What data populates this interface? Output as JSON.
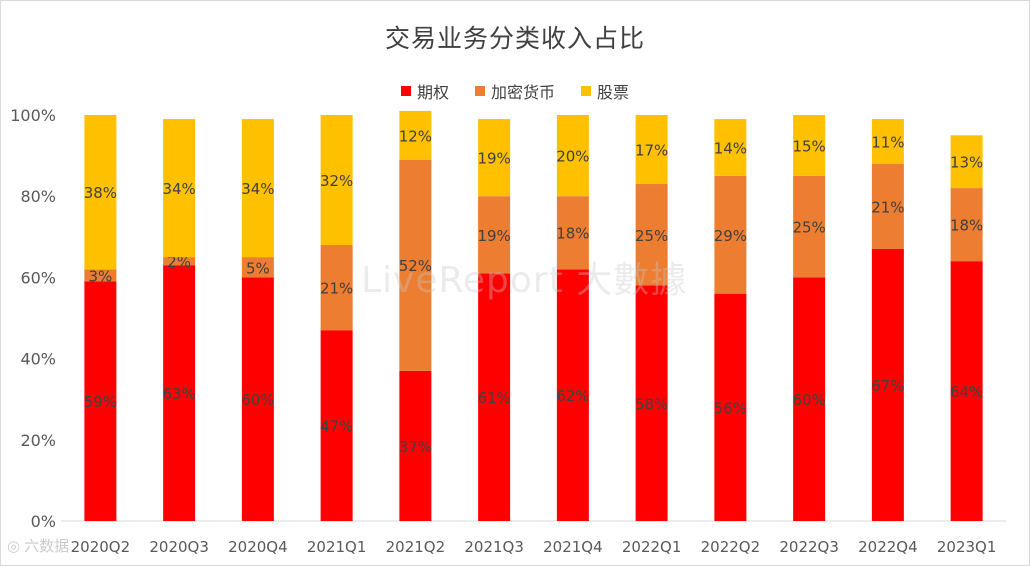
{
  "chart_data": {
    "type": "bar",
    "stacked": true,
    "title": "交易业务分类收入占比",
    "categories": [
      "2020Q2",
      "2020Q3",
      "2020Q4",
      "2021Q1",
      "2021Q2",
      "2021Q3",
      "2021Q4",
      "2022Q1",
      "2022Q2",
      "2022Q3",
      "2022Q4",
      "2023Q1"
    ],
    "series": [
      {
        "name": "期权",
        "color": "#ff0000",
        "values": [
          59,
          63,
          60,
          47,
          37,
          61,
          62,
          58,
          56,
          60,
          67,
          64
        ],
        "labels": [
          "59%",
          "63%",
          "60%",
          "47%",
          "37%",
          "61%",
          "62%",
          "58%",
          "56%",
          "60%",
          "67%",
          "64%"
        ]
      },
      {
        "name": "加密货币",
        "color": "#ed7d31",
        "values": [
          3,
          2,
          5,
          21,
          52,
          19,
          18,
          25,
          29,
          25,
          21,
          18
        ],
        "labels": [
          "3%",
          "2%",
          "5%",
          "21%",
          "52%",
          "19%",
          "18%",
          "25%",
          "29%",
          "25%",
          "21%",
          "18%"
        ]
      },
      {
        "name": "股票",
        "color": "#ffc000",
        "values": [
          38,
          34,
          34,
          32,
          12,
          19,
          20,
          17,
          14,
          15,
          11,
          13
        ],
        "labels": [
          "38%",
          "34%",
          "34%",
          "32%",
          "12%",
          "19%",
          "20%",
          "17%",
          "14%",
          "15%",
          "11%",
          "13%"
        ]
      }
    ],
    "y_ticks": [
      "0%",
      "20%",
      "40%",
      "60%",
      "80%",
      "100%"
    ],
    "ylim": [
      0,
      100
    ],
    "legend_position": "top",
    "grid": false
  },
  "watermark": "LiveReport 大數據",
  "corner_mark": "六数据"
}
